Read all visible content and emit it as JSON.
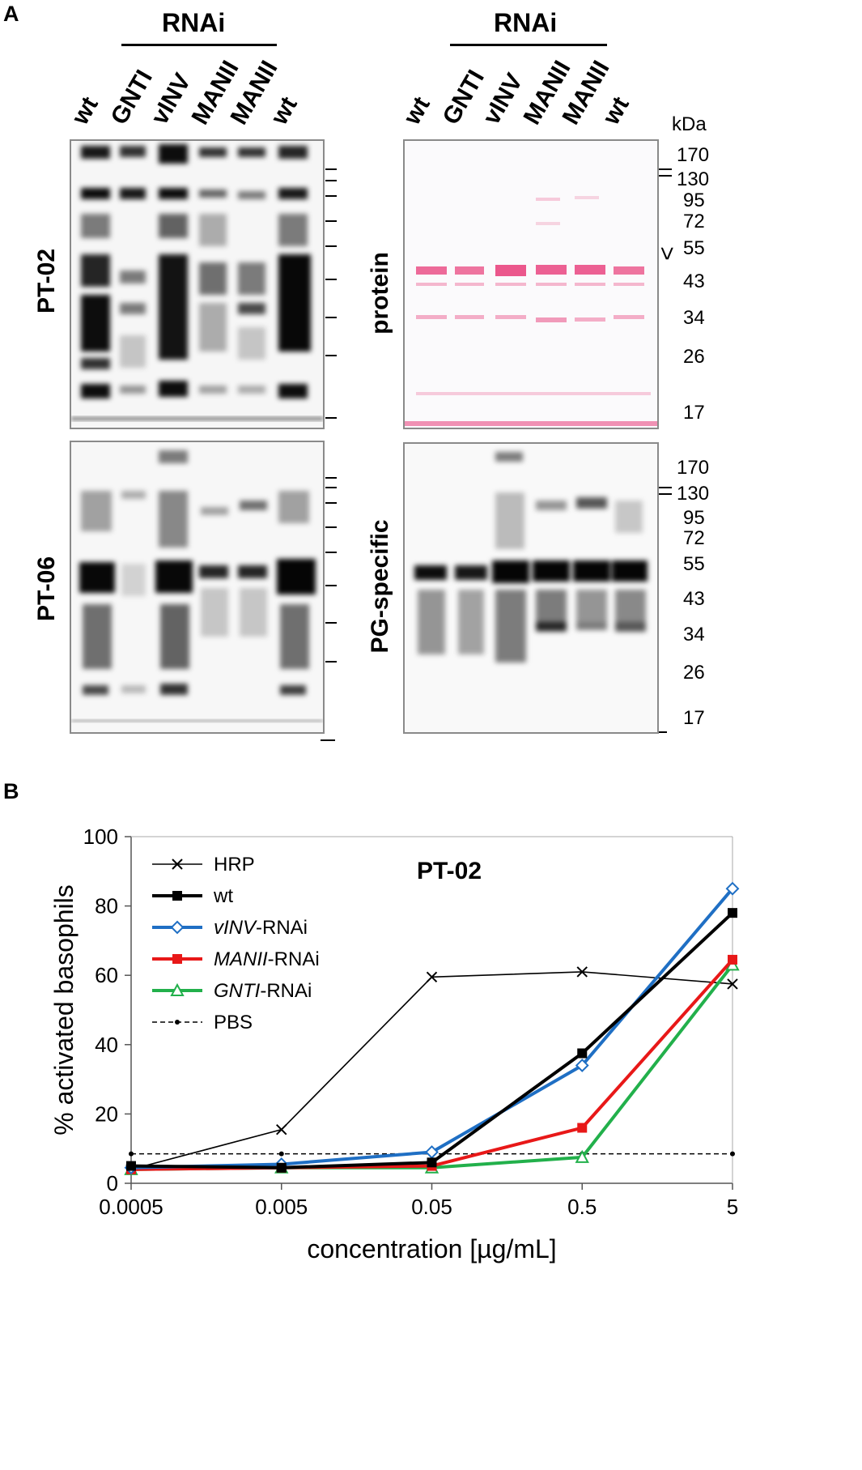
{
  "panel_a": {
    "letter": "A",
    "rnai_left": "RNAi",
    "rnai_right": "RNAi",
    "lanes_left": [
      "wt",
      "GNTI",
      "vINV",
      "MANII",
      "MANII",
      "wt"
    ],
    "lanes_right": [
      "wt",
      "GNTI",
      "vINV",
      "MANII",
      "MANII",
      "wt"
    ],
    "side_labels": {
      "top_left": "PT-02",
      "bottom_left": "PT-06",
      "top_right": "protein",
      "bottom_right": "PG-specific"
    },
    "kda_unit": "kDa",
    "kda_top": [
      "170",
      "130",
      "95",
      "72",
      "55",
      "43",
      "34",
      "26",
      "17"
    ],
    "kda_bottom": [
      "170",
      "130",
      "95",
      "72",
      "55",
      "43",
      "34",
      "26",
      "17"
    ],
    "arrow": "<"
  },
  "panel_b": {
    "letter": "B"
  },
  "chart_data": {
    "type": "line",
    "title": "PT-02",
    "xlabel": "concentration [µg/mL]",
    "ylabel": "% activated basophils",
    "x": [
      "0.0005",
      "0.005",
      "0.05",
      "0.5",
      "5"
    ],
    "xscale": "log",
    "ylim": [
      0,
      100
    ],
    "yticks": [
      "0",
      "20",
      "40",
      "60",
      "80",
      "100"
    ],
    "legend_position": "top-left",
    "series": [
      {
        "name": "HRP",
        "values": [
          4,
          15.5,
          59.5,
          61,
          57.5
        ],
        "color": "#000000",
        "marker": "x",
        "style": "solid-thin"
      },
      {
        "name": "wt",
        "values": [
          5,
          4.5,
          6,
          37.5,
          78
        ],
        "color": "#000000",
        "marker": "square",
        "style": "solid-thick"
      },
      {
        "name_italic": "vINV",
        "name_rest": "-RNAi",
        "values": [
          4.5,
          5.5,
          9,
          34,
          85
        ],
        "color": "#1f6fc4",
        "marker": "diamond-open",
        "style": "solid-thick"
      },
      {
        "name_italic": "MANII",
        "name_rest": "-RNAi",
        "values": [
          4,
          4.5,
          5,
          16,
          64.5
        ],
        "color": "#e81818",
        "marker": "square",
        "style": "solid-thick"
      },
      {
        "name_italic": "GNTI",
        "name_rest": "-RNAi",
        "values": [
          4,
          4.5,
          4.5,
          7.5,
          63
        ],
        "color": "#22b04b",
        "marker": "triangle-open",
        "style": "solid-thick"
      },
      {
        "name": "PBS",
        "values": [
          8.5,
          8.5,
          8.5,
          8.5,
          8.5
        ],
        "color": "#000000",
        "marker": "dot",
        "style": "dashed"
      }
    ]
  }
}
